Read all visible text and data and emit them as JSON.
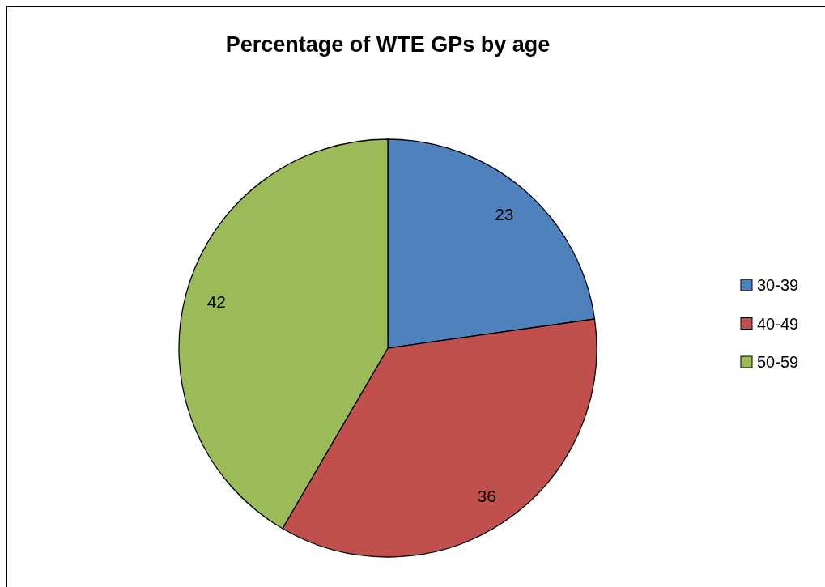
{
  "chart_data": {
    "type": "pie",
    "title": "Percentage of WTE GPs by age",
    "categories": [
      "30-39",
      "40-49",
      "50-59"
    ],
    "values": [
      23,
      36,
      42
    ],
    "colors": [
      "#4f81bd",
      "#c0504d",
      "#9bbb59"
    ],
    "data_labels": true,
    "legend": "right"
  }
}
